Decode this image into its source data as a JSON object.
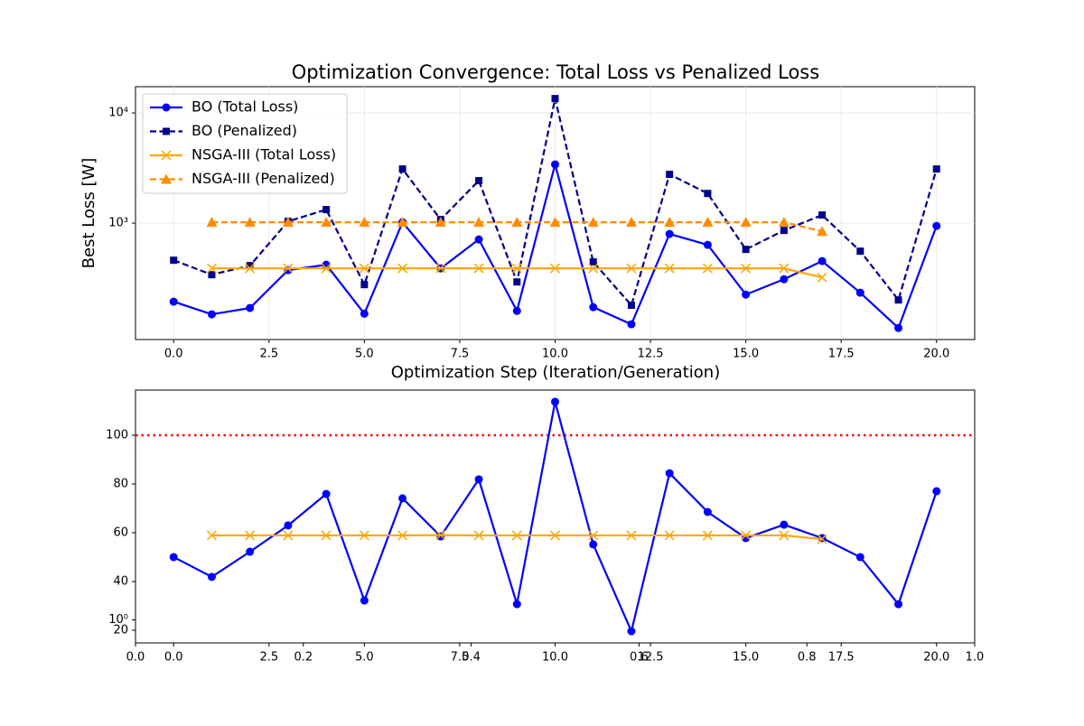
{
  "chart_data": [
    {
      "type": "line",
      "title": "Optimization Convergence: Total Loss vs Penalized Loss",
      "xlabel": "Optimization Step (Iteration/Generation)",
      "ylabel": "Best Loss [W]",
      "log_y": true,
      "grid": true,
      "legend": "upper left",
      "x": [
        0,
        1,
        2,
        3,
        4,
        5,
        6,
        7,
        8,
        9,
        10,
        11,
        12,
        13,
        14,
        15,
        16,
        17,
        18,
        19,
        20
      ],
      "xlim": [
        -1,
        21
      ],
      "xticks": [
        {
          "value": 0,
          "label": "0.0"
        },
        2.5,
        {
          "value": 5,
          "label": "5.0"
        },
        7.5,
        {
          "value": 10,
          "label": "10.0"
        },
        12.5,
        {
          "value": 15,
          "label": "15.0"
        },
        17.5,
        {
          "value": 20,
          "label": "20.0"
        }
      ],
      "ylim": [
        88,
        17300
      ],
      "yticks": [
        {
          "value": 10000,
          "label": "10⁴"
        },
        {
          "value": 1000,
          "label": "10³"
        }
      ],
      "series": [
        {
          "name": "BO (Total Loss)",
          "color": "#0000ff",
          "marker": "circle",
          "dashed": false,
          "values": [
            194,
            149,
            170,
            375,
            420,
            151,
            1020,
            389,
            712,
            160,
            3410,
            173,
            121,
            798,
            636,
            225,
            310,
            453,
            234,
            112,
            945
          ]
        },
        {
          "name": "BO (Penalized)",
          "color": "#00008b",
          "marker": "square",
          "dashed": true,
          "values": [
            461,
            341,
            412,
            1038,
            1328,
            277,
            3100,
            1078,
            2430,
            293,
            13500,
            445,
            180,
            2770,
            1860,
            578,
            859,
            1185,
            557,
            201,
            3100
          ]
        },
        {
          "name": "NSGA-III (Total Loss)",
          "color": "#ffa500",
          "marker": "x",
          "dashed": false,
          "values": [
            null,
            389,
            389,
            389,
            389,
            389,
            389,
            390,
            389,
            389,
            389,
            389,
            389,
            389,
            389,
            389,
            389,
            322,
            null,
            null,
            null
          ]
        },
        {
          "name": "NSGA-III (Penalized)",
          "color": "#ff8c00",
          "marker": "triangle",
          "dashed": true,
          "values": [
            null,
            1020,
            1020,
            1020,
            1020,
            1020,
            1020,
            1020,
            1020,
            1020,
            1020,
            1020,
            1020,
            1020,
            1020,
            1020,
            1020,
            843,
            null,
            null,
            null
          ]
        }
      ]
    },
    {
      "type": "line",
      "log_y": false,
      "grid": false,
      "x": [
        0,
        1,
        2,
        3,
        4,
        5,
        6,
        7,
        8,
        9,
        10,
        11,
        12,
        13,
        14,
        15,
        16,
        17,
        18,
        19,
        20
      ],
      "xlim": [
        -1,
        21
      ],
      "xticks": [
        {
          "value": 0,
          "label": "0.0"
        },
        2.5,
        {
          "value": 5,
          "label": "5.0"
        },
        7.5,
        {
          "value": 10,
          "label": "10.0"
        },
        12.5,
        {
          "value": 15,
          "label": "15.0"
        },
        17.5,
        {
          "value": 20,
          "label": "20.0"
        }
      ],
      "ylim": [
        14.8,
        118.5
      ],
      "yticks": [
        20,
        40,
        60,
        80,
        100
      ],
      "hline": {
        "value": 100,
        "color": "#ff0000"
      },
      "series": [
        {
          "color": "#0000ff",
          "marker": "circle",
          "dashed": false,
          "values": [
            50.0,
            41.9,
            52.2,
            63.0,
            75.9,
            32.2,
            74.1,
            58.5,
            81.9,
            30.7,
            113.7,
            55.2,
            19.6,
            84.4,
            68.5,
            57.8,
            63.3,
            57.8,
            50.0,
            30.7,
            77.0
          ]
        },
        {
          "color": "#ffa500",
          "marker": "x",
          "dashed": false,
          "values": [
            null,
            58.9,
            58.9,
            58.9,
            58.9,
            58.9,
            58.9,
            59.0,
            58.9,
            58.9,
            58.9,
            58.9,
            58.9,
            58.9,
            58.9,
            58.9,
            58.9,
            57.4,
            null,
            null,
            null
          ]
        }
      ]
    },
    {
      "type": "axes",
      "log_y": true,
      "xlim": [
        0,
        1
      ],
      "xticks": [
        {
          "value": 0,
          "label": "0.0"
        },
        0.2,
        0.4,
        0.6,
        0.8,
        {
          "value": 1,
          "label": "1.0"
        }
      ],
      "ylim": [
        0.794,
        10
      ],
      "yticks": [
        {
          "value": 1,
          "label": "10⁰"
        }
      ]
    }
  ]
}
